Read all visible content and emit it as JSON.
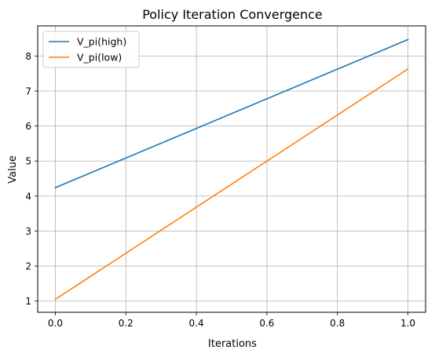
{
  "chart_data": {
    "type": "line",
    "title": "Policy Iteration Convergence",
    "xlabel": "Iterations",
    "ylabel": "Value",
    "xlim": [
      -0.05,
      1.05
    ],
    "ylim": [
      0.68,
      8.86
    ],
    "xticks": [
      0.0,
      0.2,
      0.4,
      0.6,
      0.8,
      1.0
    ],
    "xtick_labels": [
      "0.0",
      "0.2",
      "0.4",
      "0.6",
      "0.8",
      "1.0"
    ],
    "yticks": [
      1,
      2,
      3,
      4,
      5,
      6,
      7,
      8
    ],
    "ytick_labels": [
      "1",
      "2",
      "3",
      "4",
      "5",
      "6",
      "7",
      "8"
    ],
    "grid": true,
    "legend_position": "top-left",
    "series": [
      {
        "name": "V_pi(high)",
        "color": "#1f77b4",
        "x": [
          0.0,
          1.0
        ],
        "y": [
          4.24,
          8.47
        ]
      },
      {
        "name": "V_pi(low)",
        "color": "#ff7f0e",
        "x": [
          0.0,
          1.0
        ],
        "y": [
          1.05,
          7.63
        ]
      }
    ]
  }
}
